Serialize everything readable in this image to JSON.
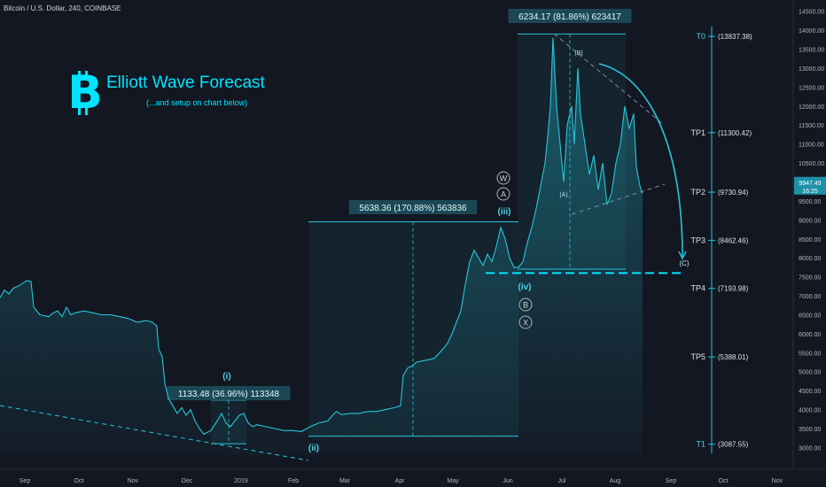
{
  "header": {
    "symbol": "Bitcoin / U.S. Dollar, 240, COINBASE"
  },
  "overlay": {
    "title": "Elliott Wave Forecast",
    "subtitle": "(...and setup on chart below)",
    "logo_icon": "bitcoin-logo-icon"
  },
  "colors": {
    "background": "#131722",
    "accent": "#00e5ff",
    "price_line": "#26c6da",
    "axis_text": "#b2b5be",
    "price_badge": "#1e90a8"
  },
  "chart_data": {
    "type": "line",
    "x_ticks": [
      "Sep",
      "Oct",
      "Nov",
      "Dec",
      "2019",
      "Feb",
      "Mar",
      "Apr",
      "May",
      "Jun",
      "Jul",
      "Aug",
      "Sep",
      "Oct",
      "Nov"
    ],
    "y_ticks": [
      3000,
      3500,
      4000,
      4500,
      5000,
      5500,
      6000,
      6500,
      7000,
      7500,
      8000,
      8500,
      9000,
      9500,
      10000,
      10500,
      11000,
      11500,
      12000,
      12500,
      13000,
      13500,
      14000,
      14500
    ],
    "y_tick_labels": [
      "3000.00",
      "3500.00",
      "4000.00",
      "4500.00",
      "5000.00",
      "5500.00",
      "6000.00",
      "6500.00",
      "7000.00",
      "7500.00",
      "8000.00",
      "8500.00",
      "9000.00",
      "9500.00",
      "10000.00",
      "10500.00",
      "11000.00",
      "11500.00",
      "12000.00",
      "12500.00",
      "13000.00",
      "13500.00",
      "14000.00",
      "14500.00"
    ],
    "ylim": [
      2800,
      14750
    ],
    "series": [
      {
        "values": [
          [
            0,
            6950
          ],
          [
            5,
            7150
          ],
          [
            10,
            7050
          ],
          [
            15,
            7200
          ],
          [
            20,
            7250
          ],
          [
            25,
            7320
          ],
          [
            30,
            7400
          ],
          [
            35,
            7380
          ],
          [
            38,
            6700
          ],
          [
            45,
            6500
          ],
          [
            55,
            6450
          ],
          [
            60,
            6550
          ],
          [
            65,
            6600
          ],
          [
            70,
            6450
          ],
          [
            75,
            6700
          ],
          [
            80,
            6500
          ],
          [
            85,
            6550
          ],
          [
            95,
            6600
          ],
          [
            105,
            6550
          ],
          [
            115,
            6500
          ],
          [
            125,
            6500
          ],
          [
            135,
            6450
          ],
          [
            145,
            6400
          ],
          [
            155,
            6300
          ],
          [
            165,
            6350
          ],
          [
            172,
            6300
          ],
          [
            177,
            6200
          ],
          [
            179,
            5600
          ],
          [
            183,
            5400
          ],
          [
            186,
            4700
          ],
          [
            190,
            4300
          ],
          [
            195,
            4100
          ],
          [
            200,
            3900
          ],
          [
            205,
            4050
          ],
          [
            210,
            3850
          ],
          [
            215,
            4000
          ],
          [
            220,
            3700
          ],
          [
            225,
            3500
          ],
          [
            230,
            3350
          ],
          [
            238,
            3450
          ],
          [
            245,
            3700
          ],
          [
            250,
            3900
          ],
          [
            255,
            3650
          ],
          [
            260,
            3550
          ],
          [
            265,
            3700
          ],
          [
            270,
            3850
          ],
          [
            275,
            3900
          ],
          [
            280,
            3650
          ],
          [
            285,
            3550
          ],
          [
            290,
            3600
          ],
          [
            300,
            3550
          ],
          [
            310,
            3500
          ],
          [
            320,
            3450
          ],
          [
            330,
            3450
          ],
          [
            340,
            3420
          ],
          [
            350,
            3550
          ],
          [
            360,
            3650
          ],
          [
            370,
            3700
          ],
          [
            375,
            3850
          ],
          [
            380,
            3950
          ],
          [
            385,
            3870
          ],
          [
            395,
            3900
          ],
          [
            405,
            3900
          ],
          [
            415,
            3950
          ],
          [
            425,
            3950
          ],
          [
            435,
            4000
          ],
          [
            445,
            4050
          ],
          [
            452,
            4100
          ],
          [
            455,
            4900
          ],
          [
            460,
            5100
          ],
          [
            465,
            5150
          ],
          [
            470,
            5250
          ],
          [
            480,
            5300
          ],
          [
            490,
            5350
          ],
          [
            500,
            5600
          ],
          [
            505,
            5750
          ],
          [
            510,
            6000
          ],
          [
            515,
            6300
          ],
          [
            520,
            6600
          ],
          [
            525,
            7300
          ],
          [
            530,
            7900
          ],
          [
            535,
            8200
          ],
          [
            540,
            8000
          ],
          [
            545,
            7800
          ],
          [
            550,
            8100
          ],
          [
            555,
            7900
          ],
          [
            560,
            8300
          ],
          [
            565,
            8800
          ],
          [
            570,
            8500
          ],
          [
            575,
            8000
          ],
          [
            580,
            7750
          ],
          [
            585,
            7750
          ],
          [
            590,
            7900
          ],
          [
            595,
            8400
          ],
          [
            600,
            8800
          ],
          [
            605,
            9300
          ],
          [
            610,
            9900
          ],
          [
            615,
            10500
          ],
          [
            618,
            11200
          ],
          [
            621,
            12000
          ],
          [
            624,
            13800
          ],
          [
            628,
            12000
          ],
          [
            632,
            11000
          ],
          [
            636,
            10000
          ],
          [
            640,
            11500
          ],
          [
            645,
            12000
          ],
          [
            648,
            11000
          ],
          [
            652,
            13000
          ],
          [
            655,
            11800
          ],
          [
            660,
            11000
          ],
          [
            665,
            10200
          ],
          [
            670,
            10700
          ],
          [
            675,
            9800
          ],
          [
            680,
            10500
          ],
          [
            685,
            9400
          ],
          [
            690,
            9700
          ],
          [
            695,
            10500
          ],
          [
            700,
            11000
          ],
          [
            705,
            12000
          ],
          [
            710,
            11400
          ],
          [
            715,
            11800
          ],
          [
            718,
            10400
          ],
          [
            722,
            9900
          ],
          [
            725,
            9700
          ]
        ]
      }
    ],
    "measures": [
      {
        "label": "5638.36 (170.88%) 563836",
        "from": 3300,
        "to": 8950
      },
      {
        "label": "6234.17 (81.86%) 623417",
        "from": 7700,
        "to": 13900
      },
      {
        "label": "1133.48 (36.96%) 113348",
        "from": 3100,
        "to": 4250
      }
    ],
    "wave_labels": [
      "(i)",
      "(ii)",
      "(iii)",
      "(iv)",
      "(A)",
      "(B)",
      "(C)"
    ],
    "circle_labels": [
      "W",
      "A",
      "B",
      "X"
    ],
    "targets": [
      {
        "name": "T0",
        "value": "(13837.38)",
        "price": 13837.38
      },
      {
        "name": "TP1",
        "value": "(11300.42)",
        "price": 11300.42
      },
      {
        "name": "TP2",
        "value": "(9730.94)",
        "price": 9730.94
      },
      {
        "name": "TP3",
        "value": "(8462.46)",
        "price": 8462.46
      },
      {
        "name": "TP4",
        "value": "(7193.98)",
        "price": 7193.98
      },
      {
        "name": "TP5",
        "value": "(5388.01)",
        "price": 5388.01
      },
      {
        "name": "T1",
        "value": "(3087.55)",
        "price": 3087.55
      }
    ],
    "last_price": {
      "price": "9947.49",
      "countdown": "16:25",
      "value": 9947.49
    },
    "support_level": 7600
  }
}
